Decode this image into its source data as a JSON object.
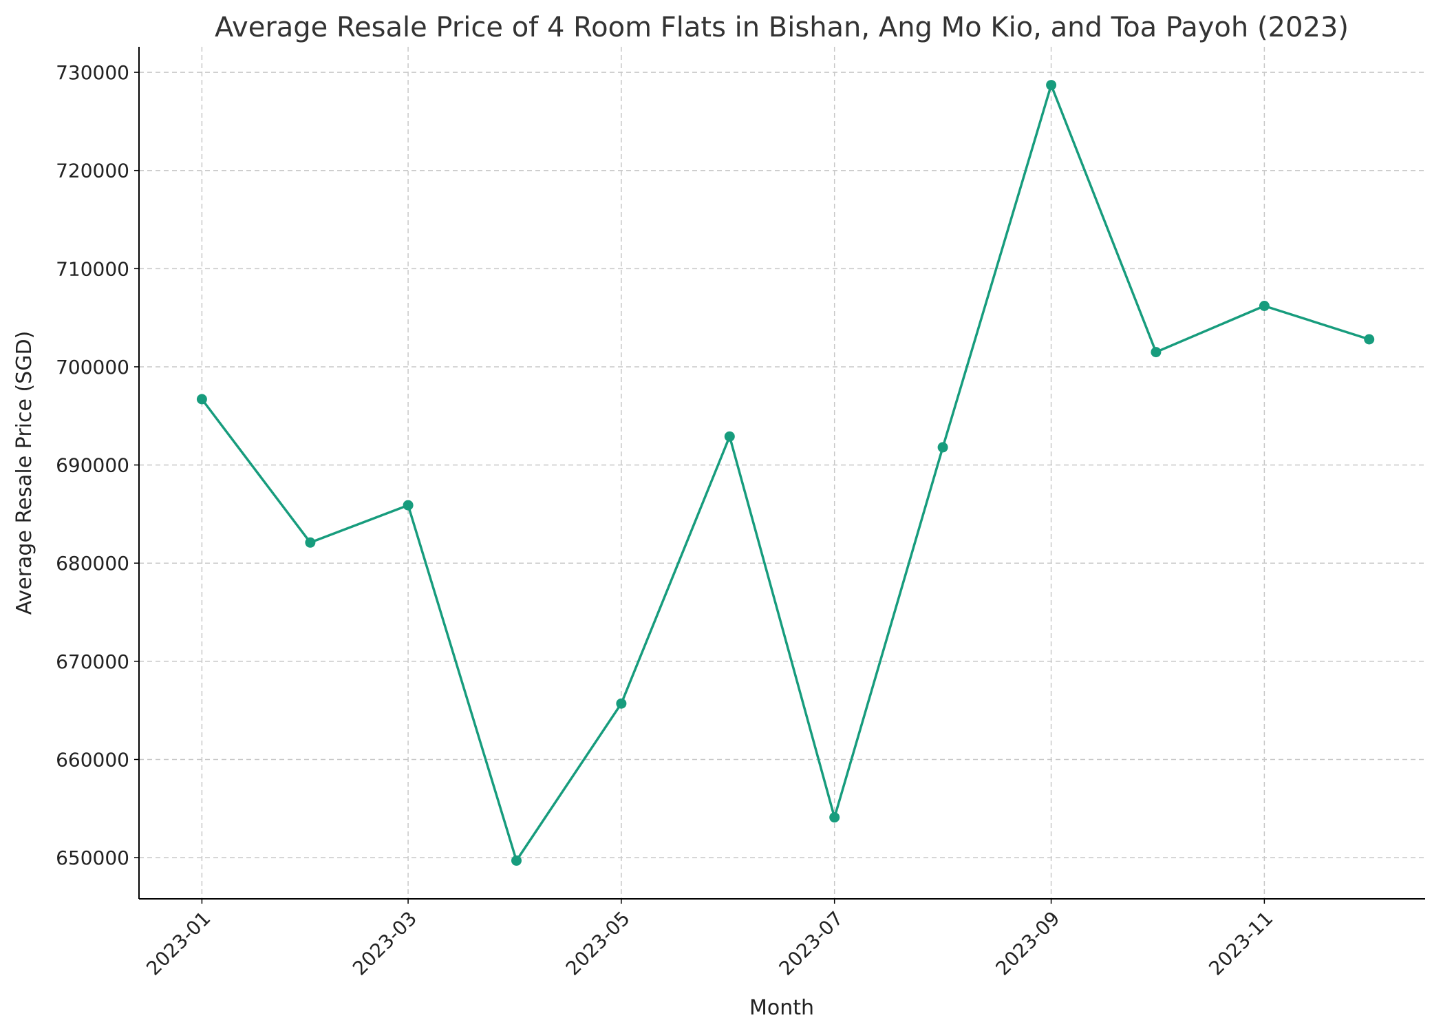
{
  "chart_data": {
    "type": "line",
    "title": "Average Resale Price of 4 Room Flats in Bishan, Ang Mo Kio, and Toa Payoh (2023)",
    "xlabel": "Month",
    "ylabel": "Average Resale Price (SGD)",
    "x": [
      "2023-01",
      "2023-02",
      "2023-03",
      "2023-04",
      "2023-05",
      "2023-06",
      "2023-07",
      "2023-08",
      "2023-09",
      "2023-10",
      "2023-11",
      "2023-12"
    ],
    "x_tick_labels": [
      "2023-01",
      "2023-03",
      "2023-05",
      "2023-07",
      "2023-09",
      "2023-11"
    ],
    "y_tick_labels": [
      "650000",
      "660000",
      "670000",
      "680000",
      "690000",
      "700000",
      "710000",
      "720000",
      "730000"
    ],
    "series": [
      {
        "values": [
          696700,
          682100,
          685900,
          649700,
          665700,
          692900,
          654100,
          691800,
          728700,
          701500,
          706200,
          702800
        ],
        "color": "#179c7d",
        "marker": "circle"
      }
    ],
    "ylim": [
      645800,
      732600
    ],
    "xlim": [
      "2022-12-14",
      "2023-12-17"
    ],
    "grid": true,
    "legend": "none"
  }
}
